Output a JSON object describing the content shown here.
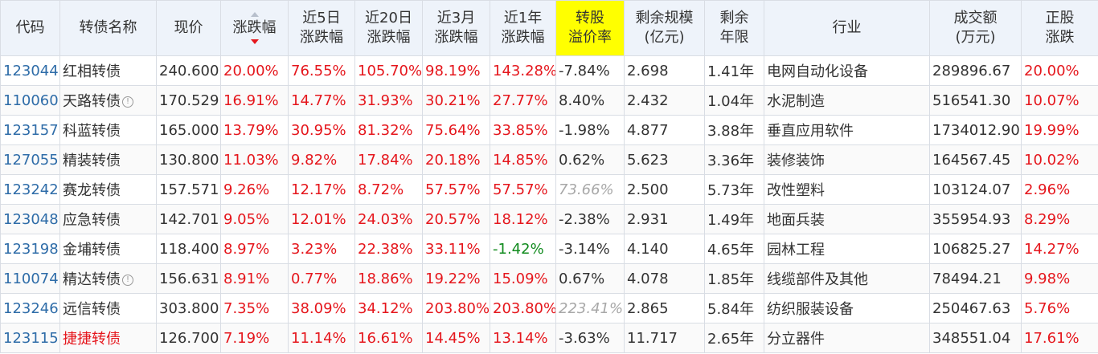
{
  "headers": {
    "code": "代码",
    "name": "转债名称",
    "price": "现价",
    "change": "涨跌幅",
    "chg5d_1": "近5日",
    "chg5d_2": "涨跌幅",
    "chg20d_1": "近20日",
    "chg20d_2": "涨跌幅",
    "chg3m_1": "近3月",
    "chg3m_2": "涨跌幅",
    "chg1y_1": "近1年",
    "chg1y_2": "涨跌幅",
    "premium_1": "转股",
    "premium_2": "溢价率",
    "scale_1": "剩余规模",
    "scale_2": "(亿元)",
    "years_1": "剩余",
    "years_2": "年限",
    "industry": "行业",
    "turnover_1": "成交额",
    "turnover_2": "(万元)",
    "stock_1": "正股",
    "stock_2": "涨跌"
  },
  "colors": {
    "up": "#e5161c",
    "down": "#118b1e",
    "code": "#2e6ca8",
    "header_bg": "#eef3fa",
    "premium_header_bg": "#ffff00"
  },
  "rows": [
    {
      "code": "123044",
      "name": "红相转债",
      "price": "240.600",
      "change": "20.00%",
      "chg5d": "76.55%",
      "chg20d": "105.70%",
      "chg3m": "98.19%",
      "chg1y": "143.28%",
      "premium": "-7.84%",
      "scale": "2.698",
      "years": "1.41年",
      "industry": "电网自动化设备",
      "turnover": "289896.67",
      "stock_change": "20.00%"
    },
    {
      "code": "110060",
      "name": "天路转债",
      "price": "170.529",
      "change": "16.91%",
      "chg5d": "14.77%",
      "chg20d": "31.93%",
      "chg3m": "30.21%",
      "chg1y": "27.77%",
      "premium": "8.40%",
      "scale": "2.432",
      "years": "1.04年",
      "industry": "水泥制造",
      "turnover": "516541.30",
      "stock_change": "10.07%"
    },
    {
      "code": "123157",
      "name": "科蓝转债",
      "price": "165.000",
      "change": "13.79%",
      "chg5d": "30.95%",
      "chg20d": "81.32%",
      "chg3m": "75.64%",
      "chg1y": "33.85%",
      "premium": "-1.98%",
      "scale": "4.877",
      "years": "3.88年",
      "industry": "垂直应用软件",
      "turnover": "1734012.90",
      "stock_change": "19.99%"
    },
    {
      "code": "127055",
      "name": "精装转债",
      "price": "130.800",
      "change": "11.03%",
      "chg5d": "9.82%",
      "chg20d": "17.84%",
      "chg3m": "20.18%",
      "chg1y": "14.85%",
      "premium": "0.62%",
      "scale": "5.623",
      "years": "3.36年",
      "industry": "装修装饰",
      "turnover": "164567.45",
      "stock_change": "10.02%"
    },
    {
      "code": "123242",
      "name": "赛龙转债",
      "price": "157.571",
      "change": "9.26%",
      "chg5d": "12.17%",
      "chg20d": "8.72%",
      "chg3m": "57.57%",
      "chg1y": "57.57%",
      "premium": "73.66%",
      "scale": "2.500",
      "years": "5.73年",
      "industry": "改性塑料",
      "turnover": "103124.07",
      "stock_change": "2.96%"
    },
    {
      "code": "123048",
      "name": "应急转债",
      "price": "142.701",
      "change": "9.05%",
      "chg5d": "12.01%",
      "chg20d": "24.03%",
      "chg3m": "20.57%",
      "chg1y": "18.12%",
      "premium": "-2.38%",
      "scale": "2.931",
      "years": "1.49年",
      "industry": "地面兵装",
      "turnover": "355954.93",
      "stock_change": "8.29%"
    },
    {
      "code": "123198",
      "name": "金埔转债",
      "price": "118.400",
      "change": "8.97%",
      "chg5d": "3.23%",
      "chg20d": "22.38%",
      "chg3m": "33.11%",
      "chg1y": "-1.42%",
      "premium": "-3.14%",
      "scale": "4.140",
      "years": "4.65年",
      "industry": "园林工程",
      "turnover": "106825.27",
      "stock_change": "14.27%"
    },
    {
      "code": "110074",
      "name": "精达转债",
      "price": "156.631",
      "change": "8.91%",
      "chg5d": "0.77%",
      "chg20d": "18.86%",
      "chg3m": "19.22%",
      "chg1y": "15.09%",
      "premium": "0.67%",
      "scale": "4.078",
      "years": "1.85年",
      "industry": "线缆部件及其他",
      "turnover": "78494.21",
      "stock_change": "9.98%"
    },
    {
      "code": "123246",
      "name": "远信转债",
      "price": "303.800",
      "change": "7.35%",
      "chg5d": "38.09%",
      "chg20d": "34.12%",
      "chg3m": "203.80%",
      "chg1y": "203.80%",
      "premium": "223.41%",
      "scale": "2.865",
      "years": "5.84年",
      "industry": "纺织服装设备",
      "turnover": "250467.63",
      "stock_change": "5.76%"
    },
    {
      "code": "123115",
      "name": "捷捷转债",
      "price": "126.700",
      "change": "7.19%",
      "chg5d": "11.14%",
      "chg20d": "16.61%",
      "chg3m": "14.45%",
      "chg1y": "13.14%",
      "premium": "-3.63%",
      "scale": "11.717",
      "years": "2.65年",
      "industry": "分立器件",
      "turnover": "348551.04",
      "stock_change": "17.61%"
    }
  ]
}
